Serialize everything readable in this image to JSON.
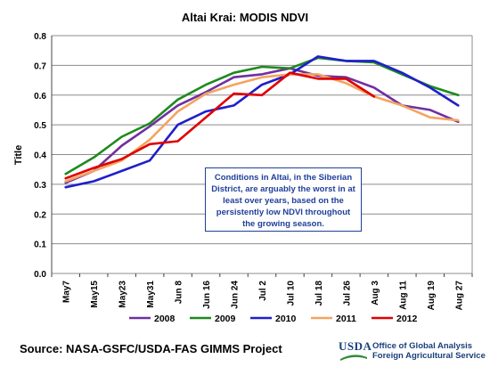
{
  "chart_data": {
    "type": "line",
    "title": "Altai Krai:  MODIS NDVI",
    "xlabel": "",
    "ylabel": "Title",
    "ylim": [
      0,
      0.8
    ],
    "yticks": [
      "0.0",
      "0.1",
      "0.2",
      "0.3",
      "0.4",
      "0.5",
      "0.6",
      "0.7",
      "0.8"
    ],
    "categories": [
      "May7",
      "May15",
      "May23",
      "May31",
      "Jun 8",
      "Jun 16",
      "Jun 24",
      "Jul 2",
      "Jul 10",
      "Jul 18",
      "Jul 26",
      "Aug 3",
      "Aug 11",
      "Aug 19",
      "Aug 27"
    ],
    "grid": true,
    "legend_position": "bottom",
    "series": [
      {
        "name": "2008",
        "color": "#7030a0",
        "values": [
          0.305,
          0.345,
          0.43,
          0.495,
          0.565,
          0.61,
          0.66,
          0.67,
          0.69,
          0.665,
          0.66,
          0.625,
          0.565,
          0.55,
          0.51
        ]
      },
      {
        "name": "2009",
        "color": "#1e8a1e",
        "values": [
          0.335,
          0.39,
          0.46,
          0.505,
          0.585,
          0.635,
          0.675,
          0.695,
          0.69,
          0.725,
          0.715,
          0.71,
          0.67,
          0.63,
          0.6
        ]
      },
      {
        "name": "2010",
        "color": "#1f1fcc",
        "values": [
          0.29,
          0.31,
          0.345,
          0.38,
          0.5,
          0.545,
          0.565,
          0.635,
          0.67,
          0.73,
          0.715,
          0.715,
          0.675,
          0.625,
          0.565
        ]
      },
      {
        "name": "2011",
        "color": "#f4a460",
        "values": [
          0.31,
          0.345,
          0.38,
          0.45,
          0.545,
          0.605,
          0.635,
          0.66,
          0.67,
          0.67,
          0.64,
          0.595,
          0.565,
          0.525,
          0.515
        ]
      },
      {
        "name": "2012",
        "color": "#e00000",
        "values": [
          0.32,
          0.355,
          0.385,
          0.435,
          0.445,
          0.525,
          0.605,
          0.6,
          0.675,
          0.655,
          0.655,
          0.595,
          null,
          null,
          null
        ]
      }
    ],
    "annotation": "Conditions in Altai, in the Siberian District, are arguably the worst in at least over years, based on the persistently low NDVI throughout the growing season."
  },
  "footer": {
    "source": "Source:  NASA-GSFC/USDA-FAS GIMMS Project",
    "logo_text": "USDA",
    "office_line1": "Office of Global Analysis",
    "office_line2": "Foreign Agricultural Service"
  }
}
